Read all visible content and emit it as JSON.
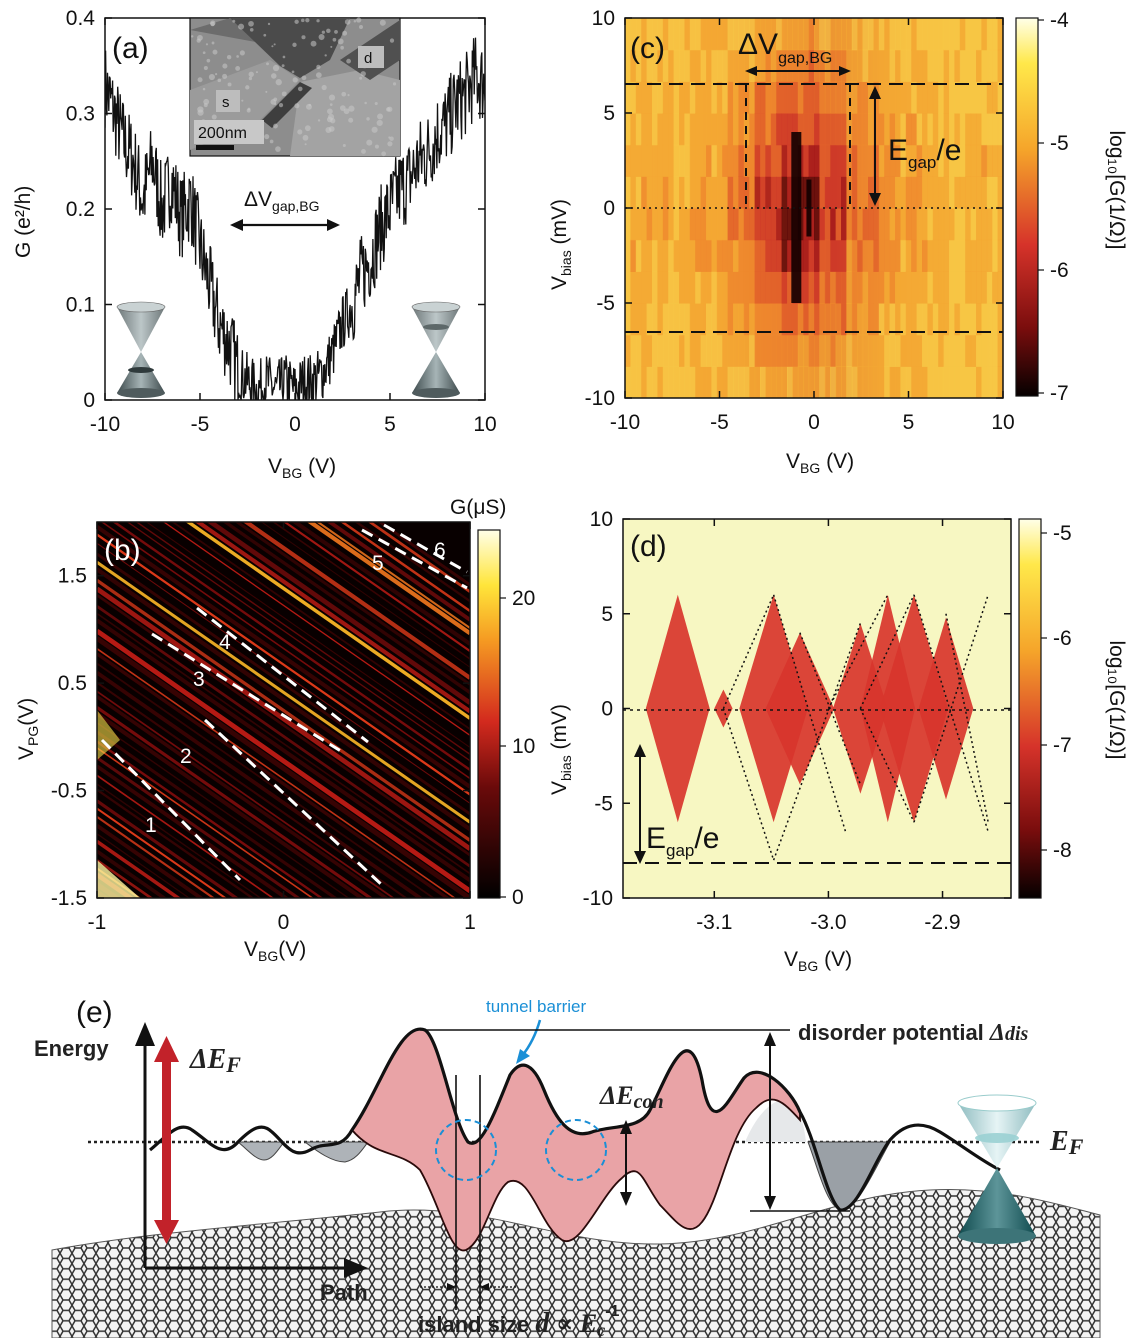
{
  "chart_data": [
    {
      "type": "line",
      "panel": "(a)",
      "xlabel": "V",
      "xlabel_sub": "BG",
      "xlabel_unit": " (V)",
      "ylabel": "G (e²/h)",
      "xlim": [
        -10,
        10
      ],
      "ylim": [
        0,
        0.4
      ],
      "xticks": [
        "-10",
        "-5",
        "0",
        "5",
        "10"
      ],
      "yticks": [
        "0",
        "0.1",
        "0.2",
        "0.3",
        "0.4"
      ],
      "annotation_main": "ΔV",
      "annotation_sub": "gap,BG",
      "inset_labels": {
        "s": "s",
        "d": "d",
        "scale": "200nm"
      },
      "series": [
        {
          "name": "G",
          "x": [
            -10,
            -9.5,
            -9,
            -8.5,
            -8,
            -7.5,
            -7,
            -6.5,
            -6,
            -5.5,
            -5,
            -4.5,
            -4,
            -3.5,
            -3,
            -2.5,
            -2,
            -1.5,
            -1,
            -0.5,
            0,
            0.5,
            1,
            1.5,
            2,
            2.5,
            3,
            3.5,
            4,
            4.5,
            5,
            5.5,
            6,
            6.5,
            7,
            7.5,
            8,
            8.5,
            9,
            9.5,
            10
          ],
          "values": [
            0.33,
            0.3,
            0.27,
            0.25,
            0.21,
            0.25,
            0.2,
            0.23,
            0.19,
            0.21,
            0.16,
            0.12,
            0.08,
            0.06,
            0.03,
            0.02,
            0.01,
            0.02,
            0.01,
            0.02,
            0.01,
            0.02,
            0.02,
            0.03,
            0.05,
            0.08,
            0.1,
            0.13,
            0.15,
            0.18,
            0.2,
            0.22,
            0.23,
            0.25,
            0.26,
            0.28,
            0.29,
            0.31,
            0.32,
            0.34,
            0.33
          ]
        }
      ]
    },
    {
      "type": "heatmap",
      "panel": "(c)",
      "xlabel": "V",
      "xlabel_sub": "BG",
      "xlabel_unit": " (V)",
      "ylabel": "V",
      "ylabel_sub": "bias",
      "ylabel_unit": " (mV)",
      "xlim": [
        -10,
        10
      ],
      "ylim": [
        -10,
        10
      ],
      "xticks": [
        "-10",
        "-5",
        "0",
        "5",
        "10"
      ],
      "yticks": [
        "-10",
        "-5",
        "0",
        "5",
        "10"
      ],
      "colorbar_label": "log₁₀[G(1/Ω)]",
      "colorbar_ticks": [
        "-4",
        "-5",
        "-6",
        "-7"
      ],
      "annotation_dv": "ΔV",
      "annotation_dv_sub": "gap,BG",
      "annotation_e": "E",
      "annotation_e_sub": "gap",
      "annotation_e_tail": "/e",
      "gap_box_vbg": [
        -3.5,
        2.0
      ],
      "gap_vbias": 6.5
    },
    {
      "type": "heatmap",
      "panel": "(b)",
      "xlabel": "V",
      "xlabel_sub": "BG",
      "xlabel_unit": "(V)",
      "ylabel": "V",
      "ylabel_sub": "PG",
      "ylabel_unit": "(V)",
      "xlim": [
        -1,
        1
      ],
      "ylim": [
        -1.5,
        2.0
      ],
      "xticks": [
        "-1",
        "0",
        "1"
      ],
      "yticks": [
        "-1.5",
        "-0.5",
        "0.5",
        "1.5"
      ],
      "colorbar_label": "G(μS)",
      "colorbar_ticks": [
        "0",
        "10",
        "20"
      ],
      "line_labels": [
        "1",
        "2",
        "3",
        "4",
        "5",
        "6"
      ]
    },
    {
      "type": "heatmap",
      "panel": "(d)",
      "xlabel": "V",
      "xlabel_sub": "BG",
      "xlabel_unit": " (V)",
      "ylabel": "V",
      "ylabel_sub": "bias",
      "ylabel_unit": " (mV)",
      "xlim": [
        -3.18,
        -2.84
      ],
      "ylim": [
        -10,
        10
      ],
      "xticks": [
        "-3.1",
        "-3.0",
        "-2.9"
      ],
      "yticks": [
        "-10",
        "-5",
        "0",
        "5",
        "10"
      ],
      "colorbar_label": "log₁₀[G(1/Ω)]",
      "colorbar_ticks": [
        "-5",
        "-6",
        "-7",
        "-8"
      ],
      "annotation_e": "E",
      "annotation_e_sub": "gap",
      "annotation_e_tail": "/e",
      "gap_vbias": -8.0,
      "diamonds_vbg": [
        -3.132,
        -3.092,
        -3.048,
        -3.025,
        -2.972,
        -2.948,
        -2.925,
        -2.897
      ]
    }
  ],
  "diagram_e": {
    "panel": "(e)",
    "energy": "Energy",
    "delta_ef": "ΔE",
    "delta_ef_sub": "F",
    "tunnel_barrier": "tunnel barrier",
    "disorder": "disorder potential ",
    "disorder_sym": "Δ",
    "disorder_sub": "dis",
    "delta_econ": "ΔE",
    "delta_econ_sub": "con",
    "ef": "E",
    "ef_sub": "F",
    "path": "Path",
    "island_size": "island size ",
    "island_d": "d",
    "island_prop": " ∝ ",
    "island_e": "E",
    "island_e_sub": "c",
    "island_e_sup": "-1",
    "colors": {
      "barrier": "#c8404a",
      "fill": "#e9a3a6",
      "blue": "#1a8fd6",
      "arrow": "#c2222a"
    }
  }
}
